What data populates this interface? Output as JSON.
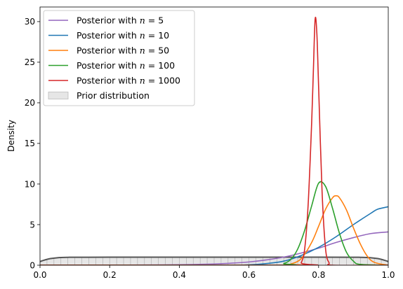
{
  "chart_data": {
    "type": "line",
    "title": "",
    "xlabel": "",
    "ylabel": "Density",
    "xlim": [
      0.0,
      1.0
    ],
    "ylim": [
      0,
      31.8
    ],
    "x_ticks": [
      "0.0",
      "0.2",
      "0.4",
      "0.6",
      "0.8",
      "1.0"
    ],
    "y_ticks": [
      "0",
      "5",
      "10",
      "15",
      "20",
      "25",
      "30"
    ],
    "grid": false,
    "legend_position": "top-left",
    "legend": [
      {
        "prefix": "Posterior with ",
        "var": "n",
        "eq": " = ",
        "value": "5",
        "color": "#9467bd",
        "kind": "line"
      },
      {
        "prefix": "Posterior with ",
        "var": "n",
        "eq": " = ",
        "value": "10",
        "color": "#1f77b4",
        "kind": "line"
      },
      {
        "prefix": "Posterior with ",
        "var": "n",
        "eq": " = ",
        "value": "50",
        "color": "#ff7f0e",
        "kind": "line"
      },
      {
        "prefix": "Posterior with ",
        "var": "n",
        "eq": " = ",
        "value": "100",
        "color": "#2ca02c",
        "kind": "line"
      },
      {
        "prefix": "Posterior with ",
        "var": "n",
        "eq": " = ",
        "value": "1000",
        "color": "#d62728",
        "kind": "line"
      },
      {
        "label": "Prior distribution",
        "color": "#bbbbbb",
        "kind": "patch"
      }
    ],
    "series": [
      {
        "color": "#9467bd",
        "x": [
          0.0,
          0.1,
          0.2,
          0.3,
          0.4,
          0.5,
          0.55,
          0.6,
          0.65,
          0.7,
          0.75,
          0.8,
          0.85,
          0.9,
          0.95,
          1.0
        ],
        "y": [
          0.0,
          0.0,
          0.01,
          0.03,
          0.06,
          0.15,
          0.25,
          0.4,
          0.65,
          1.0,
          1.5,
          2.1,
          2.8,
          3.4,
          3.9,
          4.1
        ]
      },
      {
        "color": "#1f77b4",
        "x": [
          0.0,
          0.5,
          0.6,
          0.65,
          0.7,
          0.75,
          0.8,
          0.85,
          0.9,
          0.95,
          0.97,
          1.0
        ],
        "y": [
          0.0,
          0.0,
          0.05,
          0.2,
          0.5,
          1.2,
          2.2,
          3.5,
          5.0,
          6.4,
          6.9,
          7.2
        ]
      },
      {
        "color": "#ff7f0e",
        "x": [
          0.0,
          0.7,
          0.72,
          0.75,
          0.78,
          0.8,
          0.82,
          0.84,
          0.85,
          0.86,
          0.88,
          0.9,
          0.92,
          0.94,
          0.96,
          1.0
        ],
        "y": [
          0.0,
          0.0,
          0.15,
          0.8,
          2.8,
          4.8,
          6.9,
          8.3,
          8.55,
          8.3,
          6.8,
          4.6,
          2.6,
          1.1,
          0.35,
          0.0
        ]
      },
      {
        "color": "#2ca02c",
        "x": [
          0.0,
          0.68,
          0.7,
          0.72,
          0.74,
          0.76,
          0.78,
          0.8,
          0.82,
          0.84,
          0.86,
          0.88,
          0.9,
          0.92,
          1.0
        ],
        "y": [
          0.0,
          0.0,
          0.2,
          0.7,
          2.0,
          4.3,
          7.3,
          10.1,
          9.7,
          7.0,
          3.9,
          1.6,
          0.5,
          0.1,
          0.0
        ]
      },
      {
        "color": "#d62728",
        "x": [
          0.0,
          0.74,
          0.75,
          0.76,
          0.77,
          0.78,
          0.785,
          0.79,
          0.795,
          0.8,
          0.81,
          0.82,
          0.83,
          0.84,
          1.0
        ],
        "y": [
          0.0,
          0.0,
          0.3,
          2.0,
          7.5,
          17.5,
          24.0,
          30.3,
          28.5,
          22.0,
          9.0,
          2.0,
          0.3,
          0.0,
          0.0
        ]
      }
    ],
    "prior": {
      "color": "#555555",
      "x": [
        0.0,
        0.01,
        0.02,
        0.03,
        0.05,
        0.08,
        0.1,
        0.2,
        0.5,
        0.8,
        0.9,
        0.92,
        0.95,
        0.97,
        0.98,
        0.99,
        1.0
      ],
      "y": [
        0.45,
        0.6,
        0.72,
        0.82,
        0.92,
        0.97,
        0.98,
        0.99,
        0.99,
        0.99,
        0.98,
        0.97,
        0.92,
        0.82,
        0.72,
        0.6,
        0.45
      ]
    }
  }
}
